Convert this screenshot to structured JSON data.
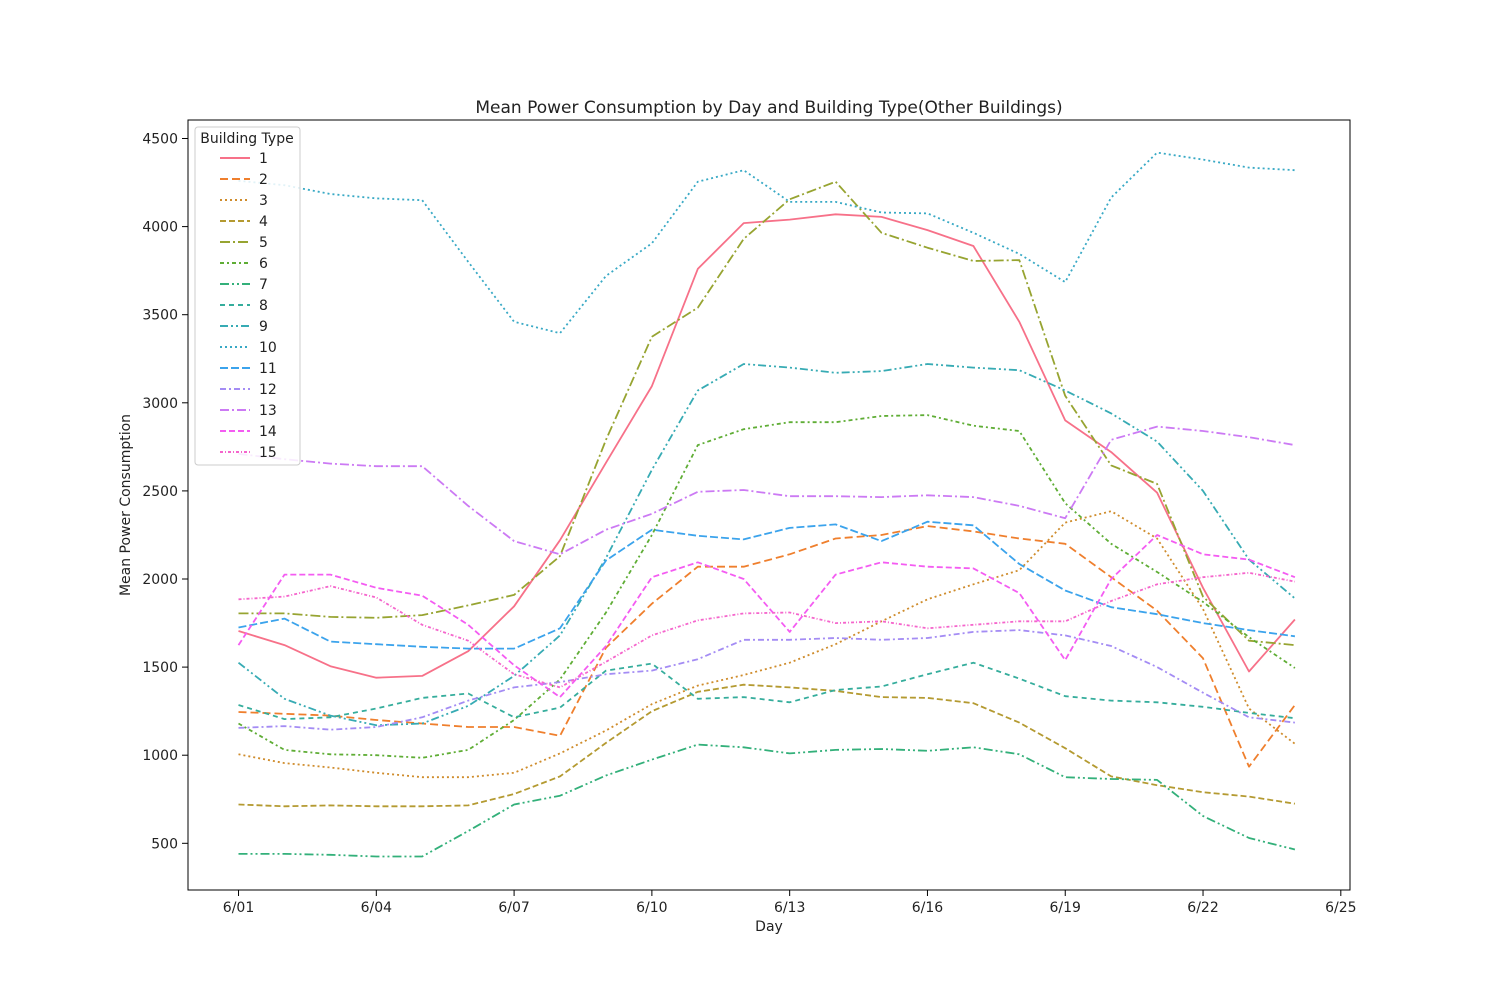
{
  "chart_data": {
    "type": "line",
    "title": "Mean Power Consumption by Day and Building Type(Other Buildings)",
    "xlabel": "Day",
    "ylabel": "Mean Power Consumption",
    "x": [
      "6/01",
      "6/02",
      "6/03",
      "6/04",
      "6/05",
      "6/06",
      "6/07",
      "6/08",
      "6/09",
      "6/10",
      "6/11",
      "6/12",
      "6/13",
      "6/14",
      "6/15",
      "6/16",
      "6/17",
      "6/18",
      "6/19",
      "6/20",
      "6/21",
      "6/22",
      "6/23",
      "6/24"
    ],
    "xticks": [
      "6/01",
      "6/04",
      "6/07",
      "6/10",
      "6/13",
      "6/16",
      "6/19",
      "6/22",
      "6/25"
    ],
    "xlim": [
      -1.1,
      24.2
    ],
    "yticks": [
      500,
      1000,
      1500,
      2000,
      2500,
      3000,
      3500,
      4000,
      4500
    ],
    "ylim": [
      235,
      4605
    ],
    "grid": false,
    "legend": {
      "title": "Building Type",
      "placement": "top-left"
    },
    "series": [
      {
        "name": "1",
        "color": "#f77189",
        "dash": "",
        "values": [
          1705,
          1625,
          1505,
          1440,
          1450,
          1590,
          1845,
          2220,
          2660,
          3095,
          3760,
          4020,
          4040,
          4070,
          4055,
          3980,
          3890,
          3460,
          2900,
          2720,
          2490,
          1950,
          1475,
          1770
        ]
      },
      {
        "name": "2",
        "color": "#ef7f2d",
        "dash": "8,4",
        "values": [
          1245,
          1235,
          1225,
          1200,
          1180,
          1160,
          1160,
          1110,
          1610,
          1860,
          2070,
          2070,
          2140,
          2230,
          2250,
          2300,
          2270,
          2230,
          2200,
          2010,
          1820,
          1550,
          935,
          1285
        ]
      },
      {
        "name": "3",
        "color": "#cf8c2c",
        "dash": "2,3",
        "values": [
          1005,
          955,
          930,
          900,
          875,
          875,
          900,
          1010,
          1140,
          1290,
          1395,
          1455,
          1525,
          1630,
          1760,
          1885,
          1970,
          2050,
          2320,
          2385,
          2230,
          1830,
          1265,
          1065
        ]
      },
      {
        "name": "4",
        "color": "#b49a31",
        "dash": "6,3",
        "values": [
          720,
          710,
          715,
          710,
          710,
          715,
          780,
          880,
          1070,
          1250,
          1360,
          1400,
          1385,
          1365,
          1330,
          1325,
          1295,
          1185,
          1040,
          880,
          830,
          790,
          765,
          725
        ]
      },
      {
        "name": "5",
        "color": "#97a431",
        "dash": "10,3,2,3",
        "values": [
          1805,
          1805,
          1785,
          1780,
          1795,
          1850,
          1910,
          2130,
          2790,
          3375,
          3540,
          3930,
          4155,
          4255,
          3965,
          3880,
          3805,
          3810,
          3040,
          2645,
          2540,
          1900,
          1650,
          1625
        ]
      },
      {
        "name": "6",
        "color": "#5fad35",
        "dash": "4,3,2,3",
        "values": [
          1180,
          1030,
          1005,
          1000,
          985,
          1030,
          1200,
          1430,
          1810,
          2250,
          2760,
          2850,
          2890,
          2890,
          2925,
          2930,
          2870,
          2840,
          2430,
          2200,
          2040,
          1870,
          1670,
          1495
        ]
      },
      {
        "name": "7",
        "color": "#33b07a",
        "dash": "9,3,2,3,2,3",
        "values": [
          440,
          440,
          435,
          425,
          425,
          570,
          720,
          770,
          885,
          975,
          1060,
          1045,
          1010,
          1030,
          1035,
          1025,
          1045,
          1005,
          875,
          865,
          860,
          655,
          530,
          465
        ]
      },
      {
        "name": "8",
        "color": "#35ad9c",
        "dash": "5,4",
        "values": [
          1285,
          1205,
          1215,
          1265,
          1325,
          1350,
          1215,
          1270,
          1480,
          1520,
          1320,
          1330,
          1300,
          1370,
          1390,
          1460,
          1525,
          1435,
          1335,
          1310,
          1300,
          1275,
          1240,
          1210
        ]
      },
      {
        "name": "9",
        "color": "#37abb4",
        "dash": "8,3,2,3,2,3",
        "values": [
          1525,
          1320,
          1225,
          1170,
          1180,
          1280,
          1450,
          1680,
          2120,
          2620,
          3070,
          3220,
          3200,
          3170,
          3180,
          3220,
          3200,
          3185,
          3070,
          2940,
          2780,
          2500,
          2110,
          1890
        ]
      },
      {
        "name": "10",
        "color": "#38a9c5",
        "dash": "2,3",
        "values": [
          4260,
          4235,
          4185,
          4160,
          4150,
          3800,
          3460,
          3395,
          3720,
          3905,
          4255,
          4320,
          4140,
          4140,
          4080,
          4075,
          3965,
          3845,
          3685,
          4165,
          4420,
          4380,
          4335,
          4320
        ]
      },
      {
        "name": "11",
        "color": "#3ba3ec",
        "dash": "8,3",
        "values": [
          1725,
          1775,
          1645,
          1630,
          1615,
          1605,
          1605,
          1720,
          2105,
          2280,
          2245,
          2225,
          2290,
          2310,
          2215,
          2325,
          2305,
          2085,
          1935,
          1840,
          1800,
          1750,
          1710,
          1675
        ]
      },
      {
        "name": "12",
        "color": "#a48cf4",
        "dash": "6,3,2,3",
        "values": [
          1155,
          1165,
          1145,
          1160,
          1215,
          1310,
          1385,
          1415,
          1460,
          1480,
          1545,
          1655,
          1655,
          1665,
          1655,
          1665,
          1700,
          1710,
          1680,
          1620,
          1500,
          1355,
          1215,
          1185
        ]
      },
      {
        "name": "13",
        "color": "#cc7af4",
        "dash": "9,3,2,3",
        "values": [
          2710,
          2680,
          2655,
          2640,
          2640,
          2415,
          2215,
          2140,
          2280,
          2370,
          2495,
          2505,
          2470,
          2470,
          2465,
          2475,
          2465,
          2415,
          2345,
          2790,
          2865,
          2840,
          2805,
          2760
        ]
      },
      {
        "name": "14",
        "color": "#f45cf2",
        "dash": "6,3",
        "values": [
          1625,
          2025,
          2025,
          1950,
          1905,
          1740,
          1510,
          1330,
          1620,
          2010,
          2095,
          2000,
          1700,
          2025,
          2095,
          2070,
          2060,
          1920,
          1540,
          2000,
          2250,
          2140,
          2110,
          2010
        ]
      },
      {
        "name": "15",
        "color": "#f565cc",
        "dash": "3,2,1,2",
        "values": [
          1885,
          1900,
          1960,
          1895,
          1740,
          1650,
          1460,
          1385,
          1530,
          1680,
          1765,
          1805,
          1810,
          1750,
          1760,
          1720,
          1740,
          1760,
          1760,
          1875,
          1970,
          2010,
          2035,
          1985
        ]
      }
    ]
  }
}
